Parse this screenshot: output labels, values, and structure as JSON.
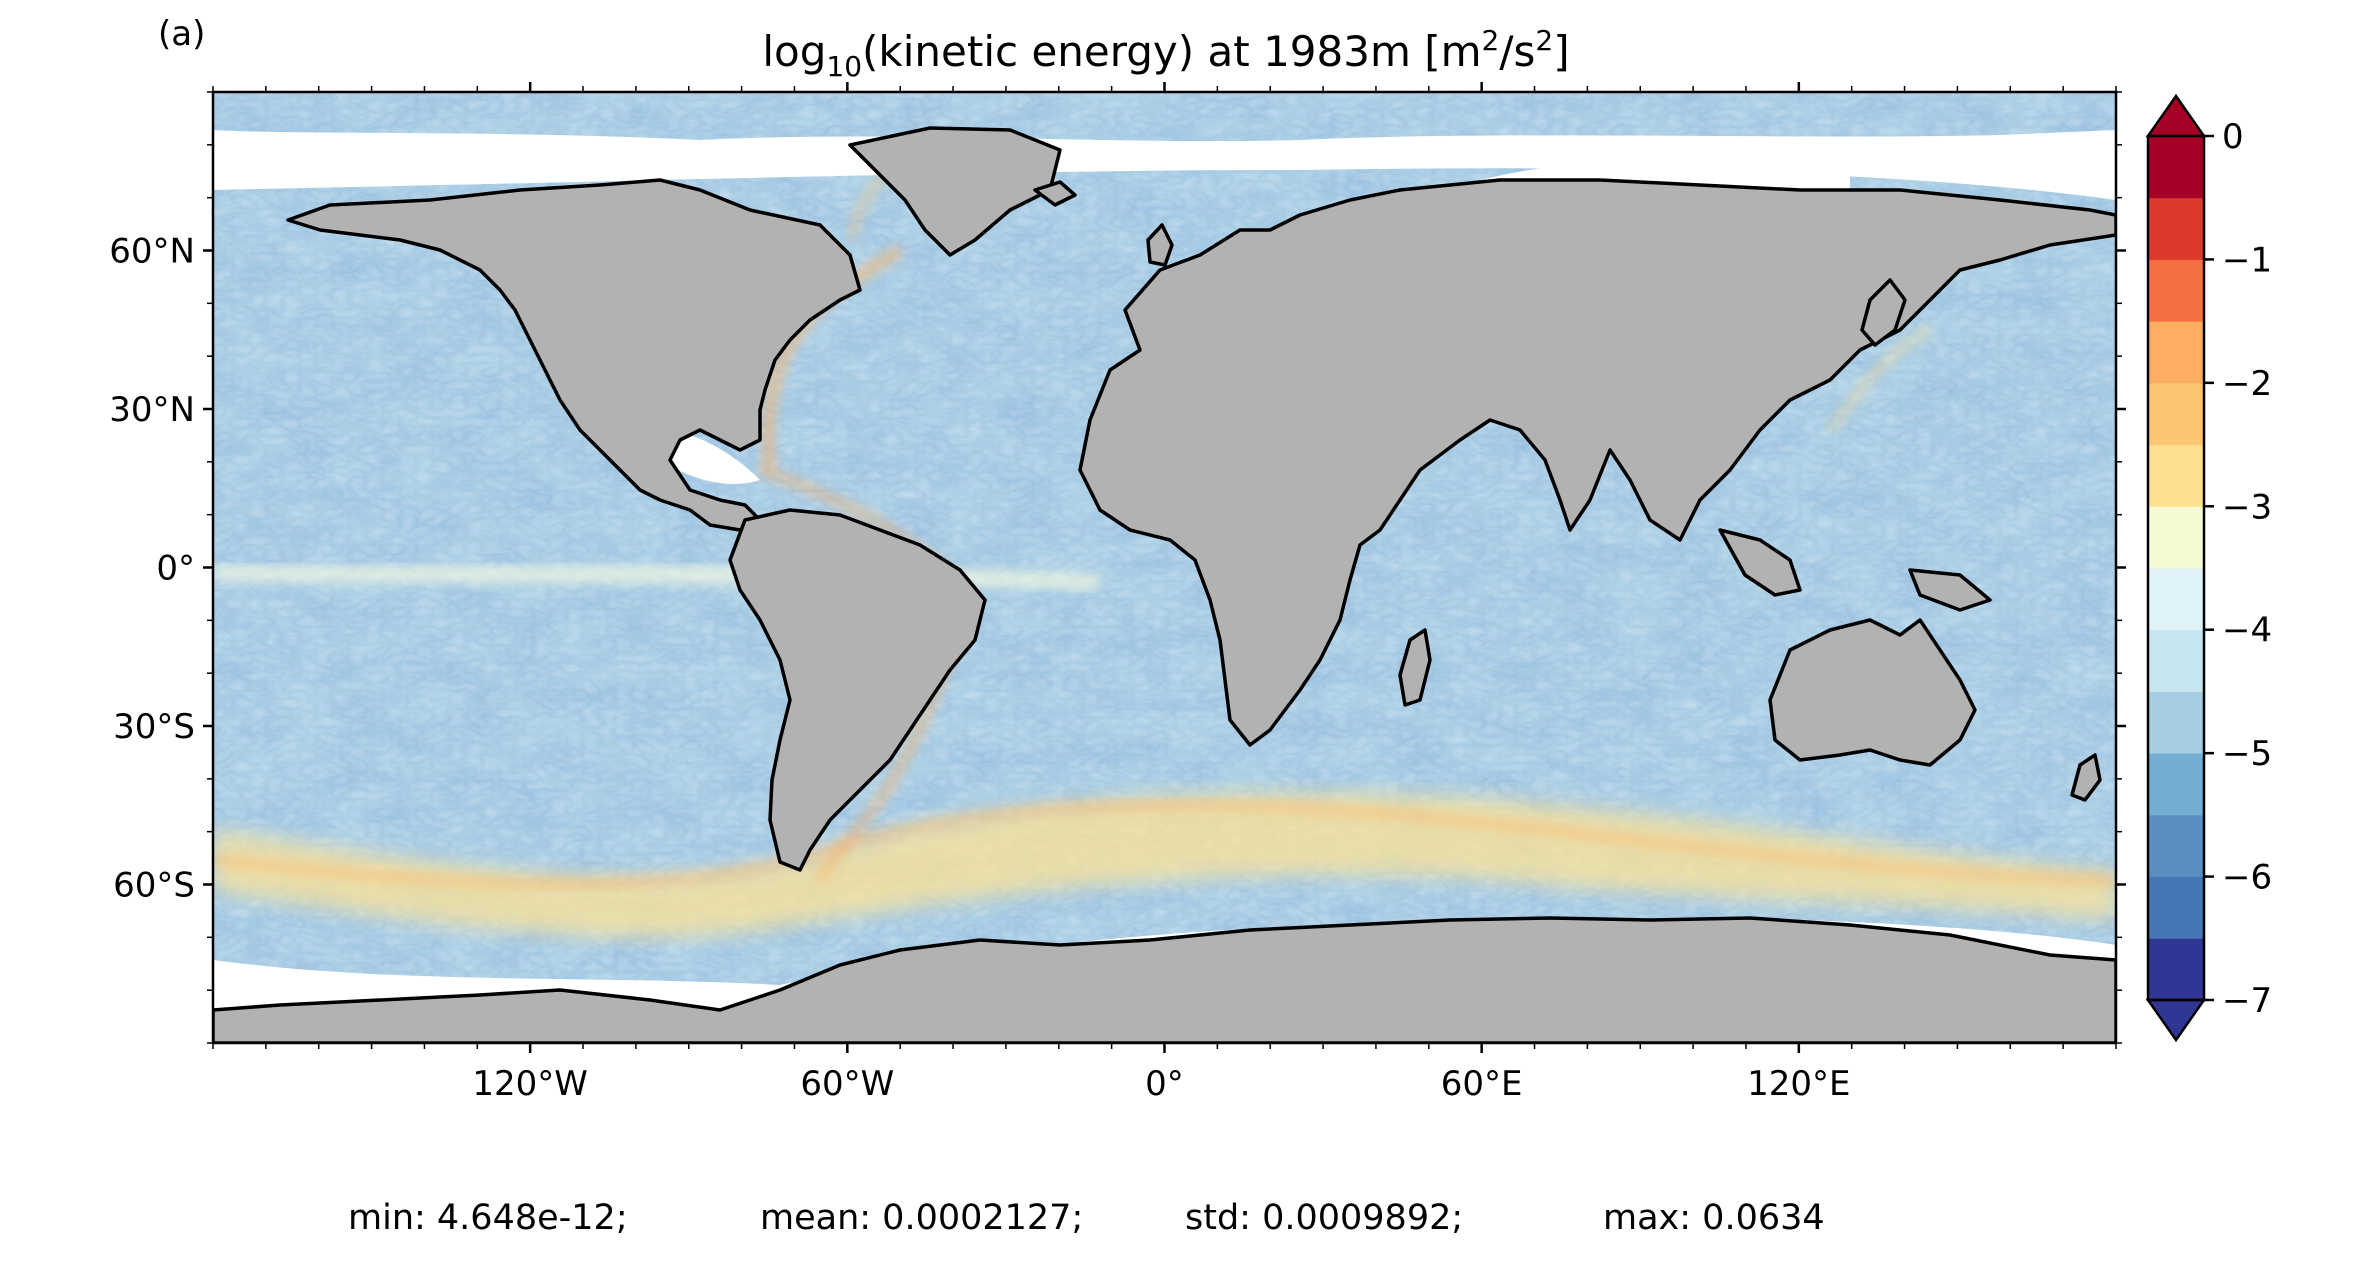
{
  "figure": {
    "panel_label": "(a)",
    "title_parts": {
      "pre": "log",
      "sub": "10",
      "mid": "(kinetic energy) at 1983m [m",
      "sup1": "2",
      "slash": "/s",
      "sup2": "2",
      "post": "]"
    }
  },
  "map": {
    "projection": "PlateCarree",
    "lon_range": [
      -180,
      180
    ],
    "lat_range": [
      -90,
      90
    ],
    "land_color": "#b2b2b2",
    "coastline_color": "#000000",
    "lat_ticks": [
      {
        "value": 60,
        "label": "60°N"
      },
      {
        "value": 30,
        "label": "30°N"
      },
      {
        "value": 0,
        "label": "0°"
      },
      {
        "value": -30,
        "label": "30°S"
      },
      {
        "value": -60,
        "label": "60°S"
      }
    ],
    "lon_ticks": [
      {
        "value": -120,
        "label": "120°W"
      },
      {
        "value": -60,
        "label": "60°W"
      },
      {
        "value": 0,
        "label": "0°"
      },
      {
        "value": 60,
        "label": "60°E"
      },
      {
        "value": 120,
        "label": "120°E"
      }
    ]
  },
  "colorbar": {
    "cmap": "RdYlBu_r",
    "vmin": -7,
    "vmax": 0,
    "levels": 14,
    "extend": "both",
    "colors": [
      "#313695",
      "#4575b4",
      "#5a8ec2",
      "#74add1",
      "#a5cde3",
      "#c6e5ef",
      "#e0f3f8",
      "#f4fbd2",
      "#fee090",
      "#fdc473",
      "#fdae61",
      "#f46d43",
      "#dc3b2c",
      "#a50026"
    ],
    "ticks": [
      {
        "value": 0,
        "label": "0"
      },
      {
        "value": -1,
        "label": "−1"
      },
      {
        "value": -2,
        "label": "−2"
      },
      {
        "value": -3,
        "label": "−3"
      },
      {
        "value": -4,
        "label": "−4"
      },
      {
        "value": -5,
        "label": "−5"
      },
      {
        "value": -6,
        "label": "−6"
      },
      {
        "value": -7,
        "label": "−7"
      }
    ]
  },
  "stats": {
    "min": "min: 4.648e-12;",
    "mean": "mean: 0.0002127;",
    "std": "std: 0.0009892;",
    "max": "max: 0.0634"
  }
}
